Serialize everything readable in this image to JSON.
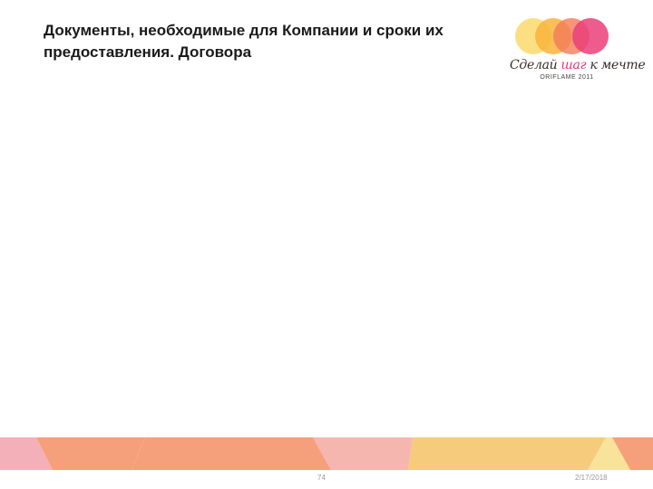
{
  "slide": {
    "title_line1": "Документы, необходимые для Компании и сроки их",
    "title_line2": "предоставления. Договора"
  },
  "logo": {
    "tagline_part1": "Сделай ",
    "tagline_accent": "шаг",
    "tagline_part2": " к мечте",
    "brand": "ORIFLAME 2011",
    "circle_colors": [
      "#fcdc76",
      "#f9b43c",
      "#f47b56",
      "#ea3f78"
    ]
  },
  "footer": {
    "page_number": "74",
    "date": "2/17/2018",
    "band_colors": [
      "#f4b0b8",
      "#f5a07b",
      "#f5b6b0",
      "#f6cb7c",
      "#f9e39a"
    ]
  }
}
